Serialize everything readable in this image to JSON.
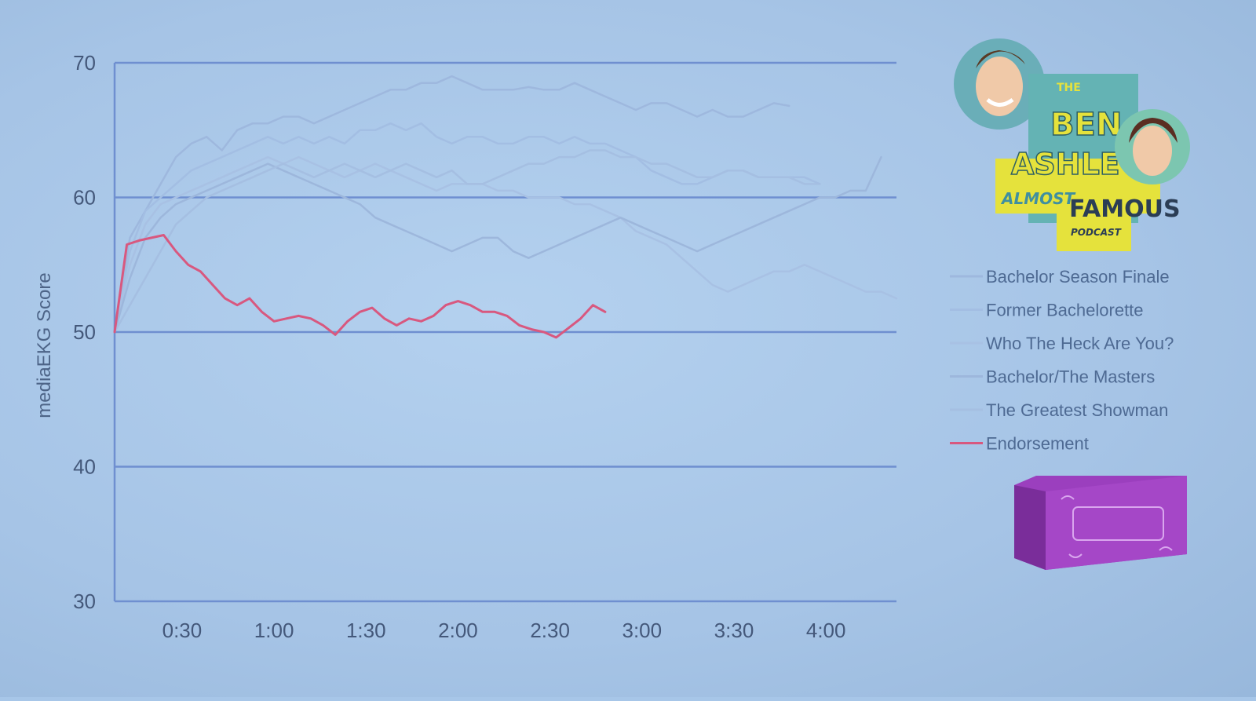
{
  "chart_data": {
    "type": "line",
    "ylabel": "mediaEKG Score",
    "xlabel": "",
    "ylim": [
      30,
      70
    ],
    "yticks": [
      30,
      40,
      50,
      60,
      70
    ],
    "xlim_seconds": [
      0,
      255
    ],
    "xticks": [
      "0:30",
      "1:00",
      "1:30",
      "2:00",
      "2:30",
      "3:00",
      "3:30",
      "4:00"
    ],
    "xticks_seconds": [
      22,
      52,
      82,
      112,
      142,
      172,
      202,
      232
    ],
    "grid": "horizontal",
    "legend_position": "right",
    "series": [
      {
        "name": "Bachelor Season Finale",
        "color": "#9eb8de",
        "x": [
          0,
          5,
          10,
          15,
          20,
          25,
          30,
          35,
          40,
          45,
          50,
          55,
          60,
          65,
          70,
          75,
          80,
          85,
          90,
          95,
          100,
          105,
          110,
          115,
          120,
          125,
          130,
          135,
          140,
          145,
          150,
          155,
          160,
          165,
          170,
          175,
          180,
          185,
          190,
          195,
          200,
          205,
          210,
          215,
          220
        ],
        "y": [
          50,
          57,
          59,
          61,
          63,
          64,
          64.5,
          63.5,
          65,
          65.5,
          65.5,
          66,
          66,
          65.5,
          66,
          66.5,
          67,
          67.5,
          68,
          68,
          68.5,
          68.5,
          69,
          68.5,
          68,
          68,
          68,
          68.2,
          68,
          68,
          68.5,
          68,
          67.5,
          67,
          66.5,
          67,
          67,
          66.5,
          66,
          66.5,
          66,
          66,
          66.5,
          67,
          66.8
        ]
      },
      {
        "name": "Former Bachelorette",
        "color": "#a3bee3",
        "x": [
          0,
          5,
          10,
          15,
          20,
          25,
          30,
          35,
          40,
          45,
          50,
          55,
          60,
          65,
          70,
          75,
          80,
          85,
          90,
          95,
          100,
          105,
          110,
          115,
          120,
          125,
          130,
          135,
          140,
          145,
          150,
          155,
          160,
          165,
          170,
          175,
          180,
          185,
          190,
          195,
          200,
          205,
          210,
          215,
          220,
          225,
          230
        ],
        "y": [
          50,
          56,
          59,
          60,
          61,
          62,
          62.5,
          63,
          63.5,
          64,
          64.5,
          64,
          64.5,
          64,
          64.5,
          64,
          65,
          65,
          65.5,
          65,
          65.5,
          64.5,
          64,
          64.5,
          64.5,
          64,
          64,
          64.5,
          64.5,
          64,
          64.5,
          64,
          64,
          63.5,
          63,
          62,
          61.5,
          61,
          61,
          61.5,
          62,
          62,
          61.5,
          61.5,
          61.5,
          61.5,
          61
        ]
      },
      {
        "name": "Who The Heck Are You?",
        "color": "#a8c1e4",
        "x": [
          0,
          5,
          10,
          15,
          20,
          25,
          30,
          35,
          40,
          45,
          50,
          55,
          60,
          65,
          70,
          75,
          80,
          85,
          90,
          95,
          100,
          105,
          110,
          115,
          120,
          125,
          130,
          135,
          140,
          145,
          150,
          155,
          160,
          165,
          170,
          175,
          180,
          185,
          190,
          195,
          200,
          205,
          210,
          215,
          220,
          225,
          230,
          235,
          240,
          245,
          250,
          255
        ],
        "y": [
          50,
          55,
          58,
          59.5,
          60,
          60.5,
          61,
          61.5,
          62,
          62.5,
          63,
          62.5,
          63,
          62.5,
          62,
          61.5,
          62,
          62.5,
          62,
          61.5,
          61,
          60.5,
          61,
          61,
          61,
          60.5,
          60.5,
          60,
          60,
          60,
          59.5,
          59.5,
          59,
          58.5,
          57.5,
          57,
          56.5,
          55.5,
          54.5,
          53.5,
          53,
          53.5,
          54,
          54.5,
          54.5,
          55,
          54.5,
          54,
          53.5,
          53,
          53,
          52.5
        ]
      },
      {
        "name": "Bachelor/The Masters",
        "color": "#9db7dc",
        "x": [
          0,
          5,
          10,
          15,
          20,
          25,
          30,
          35,
          40,
          45,
          50,
          55,
          60,
          65,
          70,
          75,
          80,
          85,
          90,
          95,
          100,
          105,
          110,
          115,
          120,
          125,
          130,
          135,
          140,
          145,
          150,
          155,
          160,
          165,
          170,
          175,
          180,
          185,
          190,
          195,
          200,
          205,
          210,
          215,
          220,
          225,
          230,
          235,
          240,
          245,
          250
        ],
        "y": [
          50,
          54,
          57,
          58.5,
          59.5,
          60,
          60.5,
          61,
          61.5,
          62,
          62.5,
          62,
          61.5,
          61,
          60.5,
          60,
          59.5,
          58.5,
          58,
          57.5,
          57,
          56.5,
          56,
          56.5,
          57,
          57,
          56,
          55.5,
          56,
          56.5,
          57,
          57.5,
          58,
          58.5,
          58,
          57.5,
          57,
          56.5,
          56,
          56.5,
          57,
          57.5,
          58,
          58.5,
          59,
          59.5,
          60,
          60,
          60.5,
          60.5,
          63
        ]
      },
      {
        "name": "The Greatest Showman",
        "color": "#a5bfe2",
        "x": [
          0,
          5,
          10,
          15,
          20,
          25,
          30,
          35,
          40,
          45,
          50,
          55,
          60,
          65,
          70,
          75,
          80,
          85,
          90,
          95,
          100,
          105,
          110,
          115,
          120,
          125,
          130,
          135,
          140,
          145,
          150,
          155,
          160,
          165,
          170,
          175,
          180,
          185,
          190,
          195,
          200,
          205,
          210,
          215,
          220,
          225,
          230
        ],
        "y": [
          50,
          52,
          54,
          56,
          58,
          59,
          60,
          60.5,
          61,
          61.5,
          62,
          62.5,
          62,
          61.5,
          62,
          62.5,
          62,
          61.5,
          62,
          62.5,
          62,
          61.5,
          62,
          61,
          61,
          61.5,
          62,
          62.5,
          62.5,
          63,
          63,
          63.5,
          63.5,
          63,
          63,
          62.5,
          62.5,
          62,
          61.5,
          61.5,
          62,
          62,
          61.5,
          61.5,
          61.5,
          61,
          61
        ]
      },
      {
        "name": "Endorsement",
        "color": "#d8587f",
        "x": [
          0,
          4,
          8,
          12,
          16,
          20,
          24,
          28,
          32,
          36,
          40,
          44,
          48,
          52,
          56,
          60,
          64,
          68,
          72,
          76,
          80,
          84,
          88,
          92,
          96,
          100,
          104,
          108,
          112,
          116,
          120,
          124,
          128,
          132,
          136,
          140,
          144,
          148,
          152,
          156,
          160
        ],
        "y": [
          50,
          56.5,
          56.8,
          57,
          57.2,
          56,
          55,
          54.5,
          53.5,
          52.5,
          52,
          52.5,
          51.5,
          50.8,
          51,
          51.2,
          51,
          50.5,
          49.8,
          50.8,
          51.5,
          51.8,
          51,
          50.5,
          51,
          50.8,
          51.2,
          52,
          52.3,
          52,
          51.5,
          51.5,
          51.2,
          50.5,
          50.2,
          50,
          49.6,
          50.3,
          51,
          52,
          51.5
        ]
      }
    ]
  }
}
